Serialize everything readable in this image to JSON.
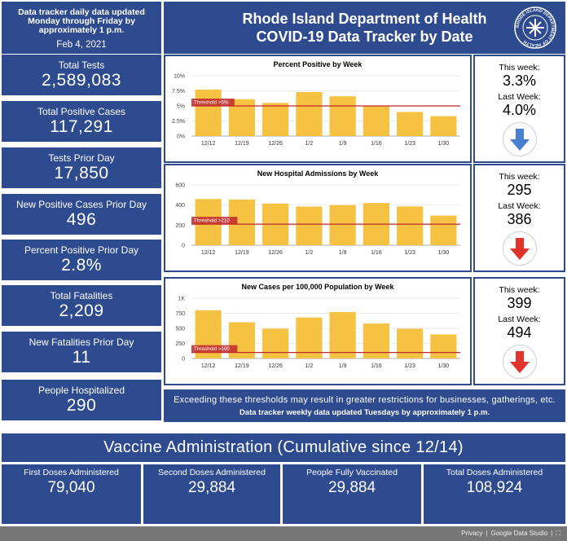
{
  "info": {
    "update_note": "Data tracker daily data updated Monday through Friday by approximately 1 p.m.",
    "date": "Feb 4, 2021"
  },
  "header": {
    "title_line1": "Rhode Island Department of Health",
    "title_line2": "COVID-19 Data Tracker by Date",
    "seal_text": "RHODE ISLAND DEPARTMENT OF HEALTH"
  },
  "stats": [
    {
      "label": "Total Tests",
      "value": "2,589,083"
    },
    {
      "label": "Total Positive Cases",
      "value": "117,291"
    },
    {
      "label": "Tests Prior Day",
      "value": "17,850"
    },
    {
      "label": "New Positive Cases Prior Day",
      "value": "496"
    },
    {
      "label": "Percent Positive Prior Day",
      "value": "2.8%"
    },
    {
      "label": "Total Fatalities",
      "value": "2,209"
    },
    {
      "label": "New Fatalities Prior Day",
      "value": "11"
    },
    {
      "label": "People Hospitalized",
      "value": "290"
    }
  ],
  "weekly": [
    {
      "this_week_label": "This week:",
      "this_week": "3.3%",
      "last_week_label": "Last Week:",
      "last_week": "4.0%",
      "trend": "down",
      "arrow_color": "#4a7fd0",
      "arrow_icon": "arrow-down-icon"
    },
    {
      "this_week_label": "This week:",
      "this_week": "295",
      "last_week_label": "Last Week:",
      "last_week": "386",
      "trend": "down",
      "arrow_color": "#e0332a",
      "arrow_icon": "arrow-down-icon"
    },
    {
      "this_week_label": "This week:",
      "this_week": "399",
      "last_week_label": "Last Week:",
      "last_week": "494",
      "trend": "down",
      "arrow_color": "#e0332a",
      "arrow_icon": "arrow-down-icon"
    }
  ],
  "note": {
    "line1": "Exceeding these thresholds may result in greater restrictions for businesses, gatherings, etc.",
    "line2": "Data tracker weekly data updated Tuesdays by approximately 1 p.m."
  },
  "vaccine": {
    "title": "Vaccine Administration (Cumulative since 12/14)",
    "items": [
      {
        "label": "First Doses Administered",
        "value": "79,040"
      },
      {
        "label": "Second Doses Administered",
        "value": "29,884"
      },
      {
        "label": "People Fully Vaccinated",
        "value": "29,884"
      },
      {
        "label": "Total Doses Administered",
        "value": "108,924"
      }
    ]
  },
  "footer": {
    "privacy": "Privacy",
    "brand": "Google Data Studio"
  },
  "colors": {
    "bar": "#f5c242",
    "threshold": "#c0272d",
    "panel": "#2e4b8f"
  },
  "chart_data": [
    {
      "type": "bar",
      "title": "Percent Positive by Week",
      "categories": [
        "12/12",
        "12/19",
        "12/26",
        "1/2",
        "1/9",
        "1/16",
        "1/23",
        "1/30"
      ],
      "values": [
        7.7,
        6.1,
        5.5,
        7.3,
        6.6,
        5.0,
        4.0,
        3.3
      ],
      "ylim": [
        0,
        10
      ],
      "yticks": [
        0,
        2.5,
        5,
        7.5,
        10
      ],
      "ytick_labels": [
        "0%",
        "2.5%",
        "5%",
        "7.5%",
        "10%"
      ],
      "threshold": 5,
      "threshold_label": "Threshold >5%"
    },
    {
      "type": "bar",
      "title": "New Hospital Admissions by Week",
      "categories": [
        "12/12",
        "12/19",
        "12/26",
        "1/2",
        "1/9",
        "1/16",
        "1/23",
        "1/30"
      ],
      "values": [
        460,
        455,
        415,
        385,
        400,
        420,
        386,
        295
      ],
      "ylim": [
        0,
        600
      ],
      "yticks": [
        0,
        200,
        400,
        600
      ],
      "ytick_labels": [
        "0",
        "200",
        "400",
        "600"
      ],
      "threshold": 210,
      "threshold_label": "Threshold >210"
    },
    {
      "type": "bar",
      "title": "New Cases per 100,000 Population by Week",
      "categories": [
        "12/12",
        "12/19",
        "12/26",
        "1/2",
        "1/9",
        "1/16",
        "1/23",
        "1/30"
      ],
      "values": [
        800,
        600,
        495,
        680,
        770,
        580,
        494,
        399
      ],
      "ylim": [
        0,
        1000
      ],
      "yticks": [
        0,
        250,
        500,
        750,
        1000
      ],
      "ytick_labels": [
        "0",
        "250",
        "500",
        "750",
        "1K"
      ],
      "threshold": 100,
      "threshold_label": "Threshold >100"
    }
  ]
}
